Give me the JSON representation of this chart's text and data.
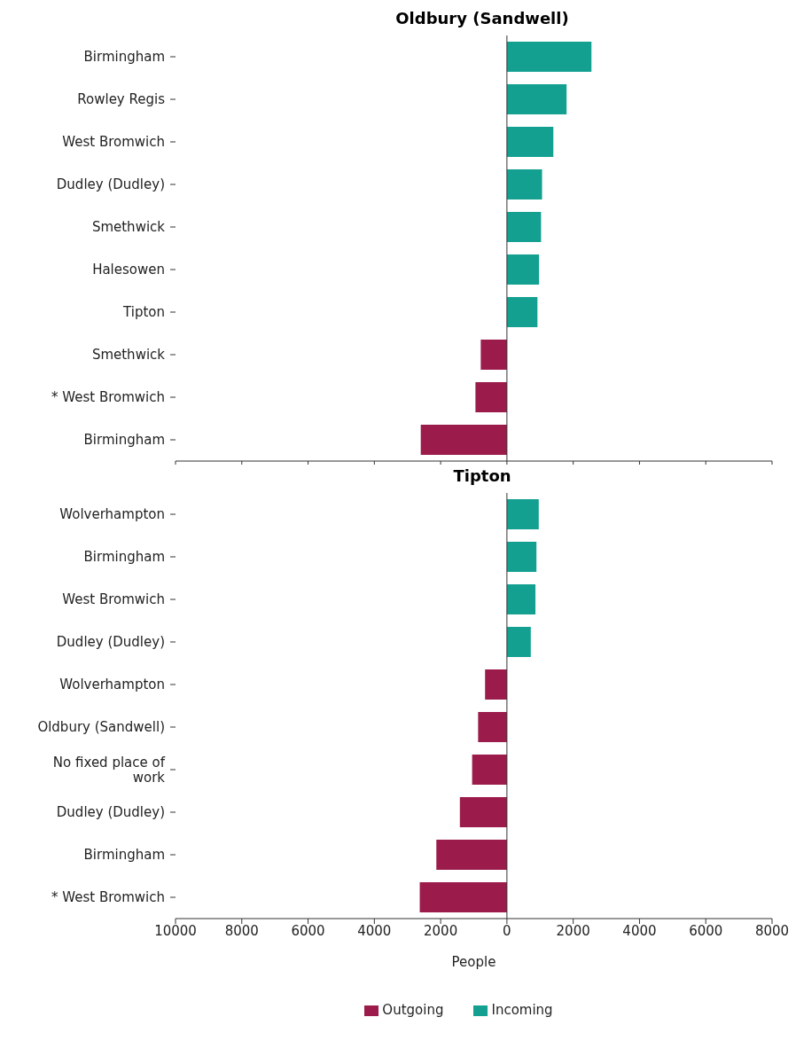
{
  "chart_data": [
    {
      "type": "bar",
      "orientation": "horizontal",
      "stacked": true,
      "title": "Oldbury (Sandwell)",
      "categories": [
        "Birmingham",
        "Rowley Regis",
        "West Bromwich",
        "Dudley (Dudley)",
        "Smethwick",
        "Halesowen",
        "Tipton",
        "Smethwick",
        "* West Bromwich",
        "Birmingham"
      ],
      "series": [
        {
          "color": "#9b1b4b",
          "values": [
            null,
            null,
            null,
            null,
            null,
            null,
            null,
            -790,
            -950,
            -2600
          ]
        },
        {
          "color": "#14a091",
          "values": [
            2550,
            1800,
            1400,
            1060,
            1030,
            970,
            920,
            null,
            null,
            null
          ]
        }
      ],
      "xlim": [
        -10000,
        8000
      ],
      "xticks": [
        {
          "value": -10000,
          "label": null
        },
        {
          "value": -8000,
          "label": null
        },
        {
          "value": -6000,
          "label": null
        },
        {
          "value": -4000,
          "label": null
        },
        {
          "value": -2000,
          "label": null
        },
        {
          "value": 0,
          "label": null
        },
        {
          "value": 2000,
          "label": null
        },
        {
          "value": 4000,
          "label": null
        },
        {
          "value": 6000,
          "label": null
        },
        {
          "value": 8000,
          "label": null
        }
      ],
      "ref_lines": [
        {
          "axis": "x",
          "value": 0
        }
      ],
      "tick_labels": "y",
      "grid": false,
      "legend": false
    },
    {
      "type": "bar",
      "orientation": "horizontal",
      "stacked": true,
      "title": "Tipton",
      "xlabel": "People",
      "categories": [
        "Wolverhampton",
        "Birmingham",
        "West Bromwich",
        "Dudley (Dudley)",
        "Wolverhampton",
        "Oldbury (Sandwell)",
        "No fixed place of work",
        "Dudley (Dudley)",
        "Birmingham",
        "* West Bromwich"
      ],
      "series": [
        {
          "name": "Outgoing",
          "color": "#9b1b4b",
          "values": [
            null,
            null,
            null,
            null,
            -660,
            -870,
            -1050,
            -1420,
            -2130,
            -2630
          ]
        },
        {
          "name": "Incoming",
          "color": "#14a091",
          "values": [
            960,
            890,
            860,
            720,
            null,
            null,
            null,
            null,
            null,
            null
          ]
        }
      ],
      "xlim": [
        -10000,
        8000
      ],
      "xticks": [
        {
          "value": -10000,
          "label": "10000"
        },
        {
          "value": -8000,
          "label": "8000"
        },
        {
          "value": -6000,
          "label": "6000"
        },
        {
          "value": -4000,
          "label": "4000"
        },
        {
          "value": -2000,
          "label": "2000"
        },
        0,
        2000,
        4000,
        6000,
        8000
      ],
      "ref_lines": [
        {
          "axis": "x",
          "value": 0
        }
      ],
      "grid": false,
      "legend": "bottom"
    }
  ]
}
